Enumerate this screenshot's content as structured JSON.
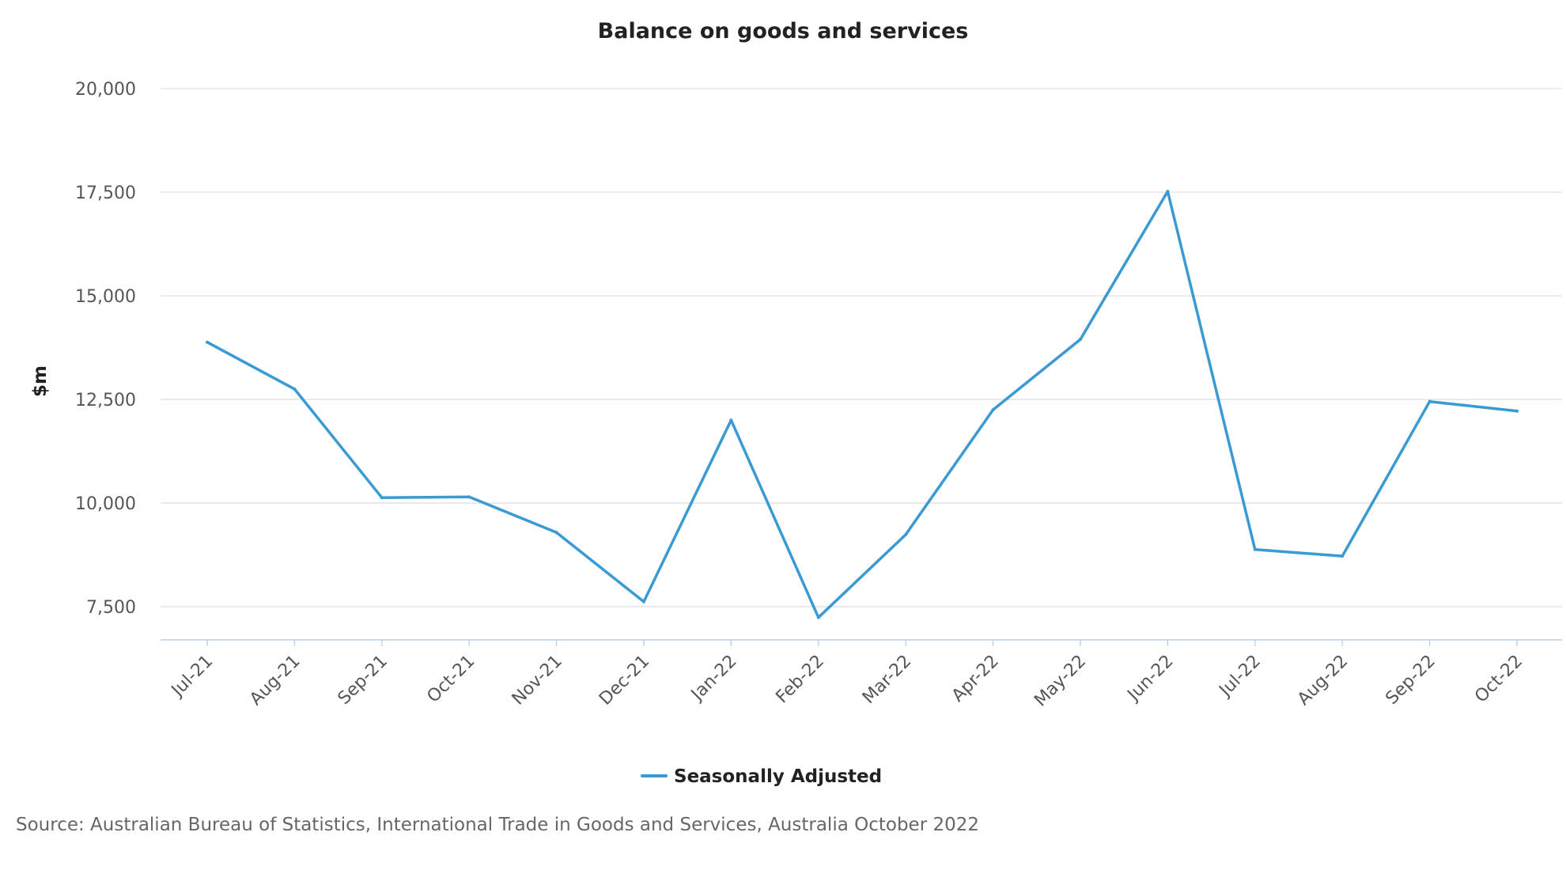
{
  "chart_data": {
    "type": "line",
    "title": "Balance on goods and services",
    "ylabel": "$m",
    "xlabel": "",
    "categories": [
      "Jul-21",
      "Aug-21",
      "Sep-21",
      "Oct-21",
      "Nov-21",
      "Dec-21",
      "Jan-22",
      "Feb-22",
      "Mar-22",
      "Apr-22",
      "May-22",
      "Jun-22",
      "Jul-22",
      "Aug-22",
      "Sep-22",
      "Oct-22"
    ],
    "series": [
      {
        "name": "Seasonally Adjusted",
        "color": "#3a9ad3",
        "values": [
          13880,
          12750,
          10130,
          10150,
          9290,
          7620,
          12000,
          7240,
          9240,
          12250,
          13950,
          17520,
          8880,
          8720,
          12450,
          12220
        ]
      }
    ],
    "yticks": [
      7500,
      10000,
      12500,
      15000,
      17500,
      20000
    ],
    "ytick_labels": [
      "7,500",
      "10,000",
      "12,500",
      "15,000",
      "17,500",
      "20,000"
    ],
    "ylim": [
      6700,
      20000
    ],
    "grid": true,
    "legend_position": "bottom-center"
  },
  "source_note": "Source: Australian Bureau of Statistics, International Trade in Goods and Services, Australia October 2022",
  "colors": {
    "series": "#3a9ad3",
    "gridline": "#e0e0e0",
    "axis_line": "#b8cde6"
  }
}
